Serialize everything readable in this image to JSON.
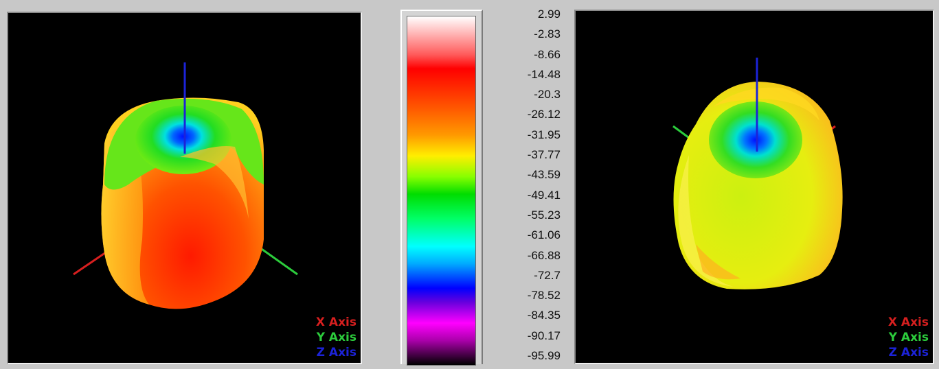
{
  "left_view": {
    "legend": {
      "x": "X Axis",
      "y": "Y Axis",
      "z": "Z Axis"
    }
  },
  "right_view": {
    "legend": {
      "x": "X Axis",
      "y": "Y Axis",
      "z": "Z Axis"
    }
  },
  "colorbar": {
    "ticks": [
      "2.99",
      "-2.83",
      "-8.66",
      "-14.48",
      "-20.3",
      "-26.12",
      "-31.95",
      "-37.77",
      "-43.59",
      "-49.41",
      "-55.23",
      "-61.06",
      "-66.88",
      "-72.7",
      "-78.52",
      "-84.35",
      "-90.17",
      "-95.99"
    ]
  },
  "colors": {
    "x_axis": "#d71f1f",
    "y_axis": "#2ccc3c",
    "z_axis": "#1c23d8",
    "viewport_bg": "#000000",
    "panel_bg": "#c8c8c8"
  }
}
